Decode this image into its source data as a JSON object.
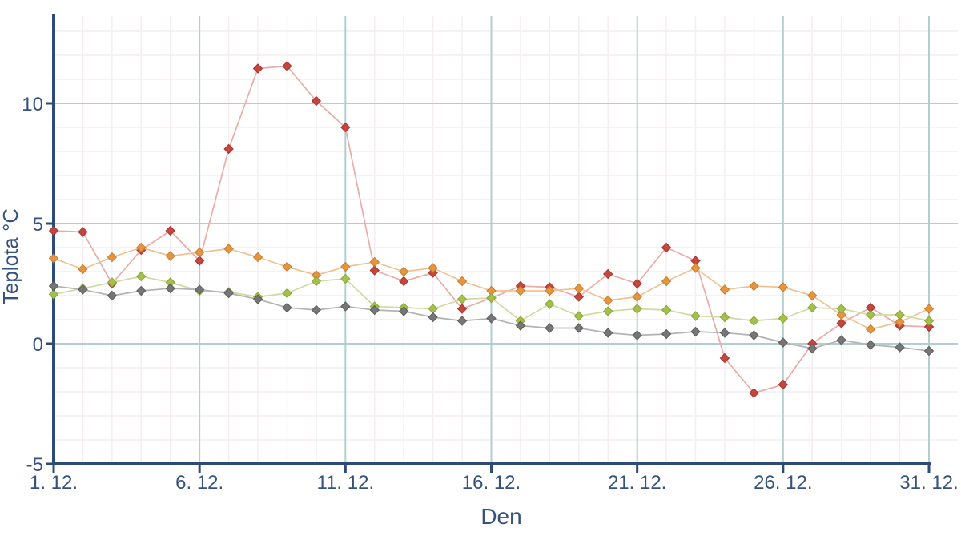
{
  "chart_data": {
    "type": "line",
    "title": "",
    "xlabel": "Den",
    "ylabel": "Teplota °C",
    "x": [
      1,
      2,
      3,
      4,
      5,
      6,
      7,
      8,
      9,
      10,
      11,
      12,
      13,
      14,
      15,
      16,
      17,
      18,
      19,
      20,
      21,
      22,
      23,
      24,
      25,
      26,
      27,
      28,
      29,
      30,
      31
    ],
    "x_tick_days": [
      1,
      6,
      11,
      16,
      21,
      26,
      31
    ],
    "x_tick_labels": [
      "1. 12.",
      "6. 12.",
      "11. 12.",
      "16. 12.",
      "21. 12.",
      "26. 12.",
      "31. 12."
    ],
    "y_ticks": [
      -5,
      0,
      5,
      10
    ],
    "y_tick_labels": [
      "-5",
      "0",
      "5",
      "10"
    ],
    "xlim": [
      1,
      31
    ],
    "ylim": [
      -5,
      13.6
    ],
    "grid": {
      "major": true,
      "minor": true
    },
    "legend_position": "none",
    "series": [
      {
        "name": "red",
        "marker_color": "#c6463e",
        "marker_edge_color": "#a83430",
        "line_color": "#e9aca7",
        "values": [
          4.7,
          4.65,
          2.5,
          3.9,
          4.7,
          3.45,
          8.1,
          11.45,
          11.55,
          10.1,
          9.0,
          3.05,
          2.6,
          2.95,
          1.45,
          1.9,
          2.4,
          2.35,
          1.95,
          2.9,
          2.5,
          4.0,
          3.45,
          -0.6,
          -2.05,
          -1.7,
          0.0,
          0.85,
          1.5,
          0.75,
          0.7
        ]
      },
      {
        "name": "orange",
        "marker_color": "#e6953f",
        "marker_edge_color": "#c97d2c",
        "line_color": "#efc293",
        "values": [
          3.55,
          3.1,
          3.6,
          4.0,
          3.65,
          3.8,
          3.95,
          3.6,
          3.2,
          2.85,
          3.2,
          3.4,
          3.0,
          3.15,
          2.6,
          2.2,
          2.2,
          2.2,
          2.3,
          1.8,
          1.95,
          2.6,
          3.15,
          2.25,
          2.4,
          2.35,
          2.0,
          1.2,
          0.6,
          0.9,
          1.45
        ]
      },
      {
        "name": "green",
        "marker_color": "#a4bf4a",
        "marker_edge_color": "#8aa63a",
        "line_color": "#cfdba2",
        "values": [
          2.05,
          2.3,
          2.55,
          2.8,
          2.55,
          2.2,
          2.15,
          1.95,
          2.1,
          2.6,
          2.7,
          1.55,
          1.5,
          1.45,
          1.85,
          1.9,
          0.95,
          1.65,
          1.15,
          1.35,
          1.45,
          1.4,
          1.15,
          1.1,
          0.95,
          1.05,
          1.5,
          1.45,
          1.2,
          1.2,
          0.95
        ]
      },
      {
        "name": "gray",
        "marker_color": "#767676",
        "marker_edge_color": "#5e5e5e",
        "line_color": "#b3b3b3",
        "values": [
          2.4,
          2.25,
          2.0,
          2.2,
          2.3,
          2.25,
          2.1,
          1.85,
          1.5,
          1.4,
          1.55,
          1.4,
          1.35,
          1.1,
          0.95,
          1.05,
          0.75,
          0.65,
          0.65,
          0.45,
          0.35,
          0.4,
          0.5,
          0.45,
          0.35,
          0.05,
          -0.2,
          0.15,
          -0.05,
          -0.15,
          -0.3
        ]
      }
    ],
    "colors": {
      "axis": "#2e4b75",
      "tick_label": "#35517e",
      "grid_major": "#b2cecf",
      "grid_minor": "#f4eef0",
      "background": "#ffffff"
    }
  }
}
